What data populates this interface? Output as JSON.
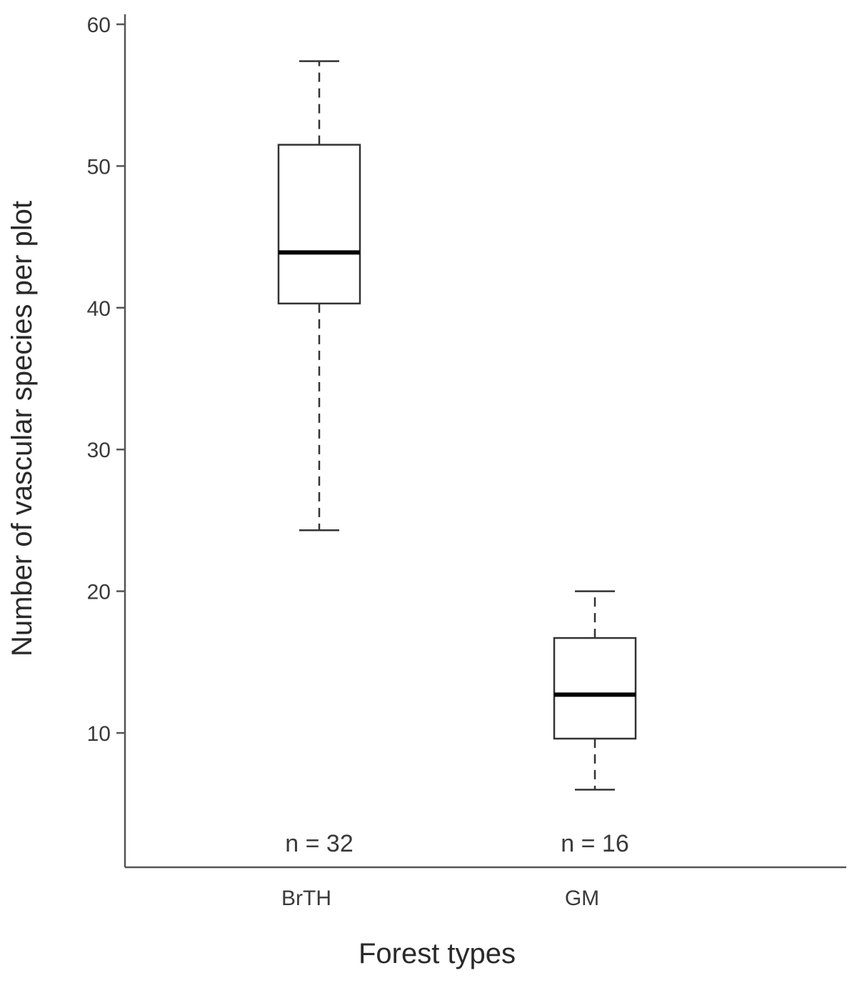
{
  "chart_data": {
    "type": "boxplot",
    "title": "",
    "xlabel": "Forest types",
    "ylabel": "Number of vascular species per plot",
    "ylim": [
      1,
      61
    ],
    "yticks": [
      10,
      20,
      30,
      40,
      50,
      60
    ],
    "grid": false,
    "categories": [
      "BrTH",
      "GM"
    ],
    "boxes": [
      {
        "category": "BrTH",
        "whisker_low": 24.3,
        "q1": 40.3,
        "median": 43.9,
        "q3": 51.5,
        "whisker_high": 57.4,
        "n_label": "n = 32"
      },
      {
        "category": "GM",
        "whisker_low": 6.0,
        "q1": 9.6,
        "median": 12.7,
        "q3": 16.7,
        "whisker_high": 20.0,
        "n_label": "n = 16"
      }
    ]
  }
}
